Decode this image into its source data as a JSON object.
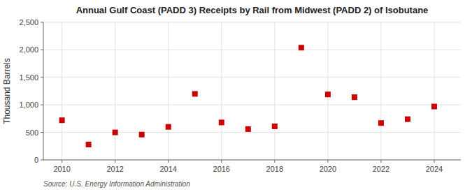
{
  "chart_data": {
    "type": "scatter",
    "title": "Annual Gulf Coast (PADD 3) Receipts by Rail from Midwest (PADD 2) of Isobutane",
    "y_label": "Thousand Barrels",
    "source": "Source: U.S. Energy Information Administration",
    "x": [
      2010,
      2011,
      2012,
      2013,
      2014,
      2015,
      2016,
      2017,
      2018,
      2019,
      2020,
      2021,
      2022,
      2023,
      2024
    ],
    "values": [
      720,
      280,
      500,
      460,
      600,
      1200,
      680,
      560,
      610,
      2040,
      1190,
      1140,
      670,
      740,
      970
    ],
    "color": "#cc0000",
    "marker": "square",
    "xlim": [
      2009.3,
      2025.0
    ],
    "xticks": [
      2010,
      2012,
      2014,
      2016,
      2018,
      2020,
      2022,
      2024
    ],
    "ylim": [
      0,
      2500
    ],
    "yticks": [
      0,
      500,
      {
        "value": 1000,
        "label": "1,000"
      },
      {
        "value": 1500,
        "label": "1,500"
      },
      {
        "value": 2000,
        "label": "2,000"
      },
      {
        "value": 2500,
        "label": "2,500"
      }
    ],
    "grid": true
  }
}
